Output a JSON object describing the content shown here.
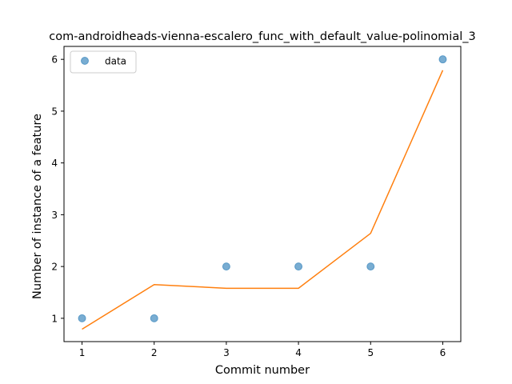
{
  "chart_data": {
    "type": "scatter",
    "title": "com-androidheads-vienna-escalero_func_with_default_value-polinomial_3",
    "xlabel": "Commit number",
    "ylabel": "Number of instance of a feature",
    "x": [
      1,
      2,
      3,
      4,
      5,
      6
    ],
    "xlim": [
      0.75,
      6.25
    ],
    "ylim": [
      0.55,
      6.25
    ],
    "xticks": [
      "1",
      "2",
      "3",
      "4",
      "5",
      "6"
    ],
    "yticks": [
      "1",
      "2",
      "3",
      "4",
      "5",
      "6"
    ],
    "series": [
      {
        "name": "data",
        "kind": "scatter",
        "color": "#1f77b4",
        "values": [
          1,
          1,
          2,
          2,
          2,
          6
        ]
      },
      {
        "kind": "line",
        "color": "#ff7f0e",
        "values": [
          0.79,
          1.65,
          1.58,
          1.58,
          2.64,
          5.79
        ]
      }
    ],
    "legend": {
      "position": "top-left",
      "entries": [
        "data"
      ]
    },
    "grid": false
  }
}
